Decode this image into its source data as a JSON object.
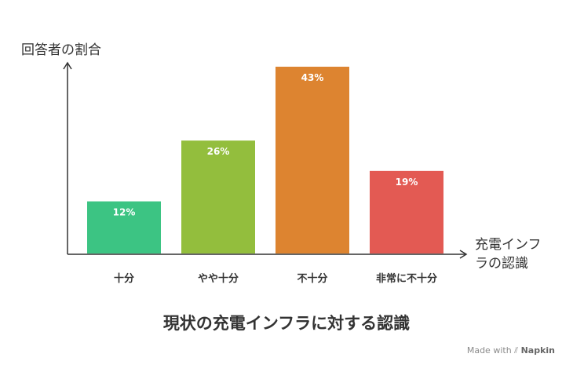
{
  "chart_data": {
    "type": "bar",
    "title": "現状の充電インフラに対する認識",
    "ylabel": "回答者の割合",
    "xlabel": "充電インフラの認識",
    "categories": [
      "十分",
      "やや十分",
      "不十分",
      "非常に不十分"
    ],
    "values": [
      12,
      26,
      43,
      19
    ],
    "value_labels": [
      "12%",
      "26%",
      "43%",
      "19%"
    ],
    "colors": [
      "#3cc483",
      "#93be3d",
      "#dd8430",
      "#e35a53"
    ],
    "ylim": [
      0,
      43
    ],
    "grid": false,
    "legend": "none"
  },
  "watermark": {
    "prefix": "Made with",
    "brand": "Napkin"
  }
}
